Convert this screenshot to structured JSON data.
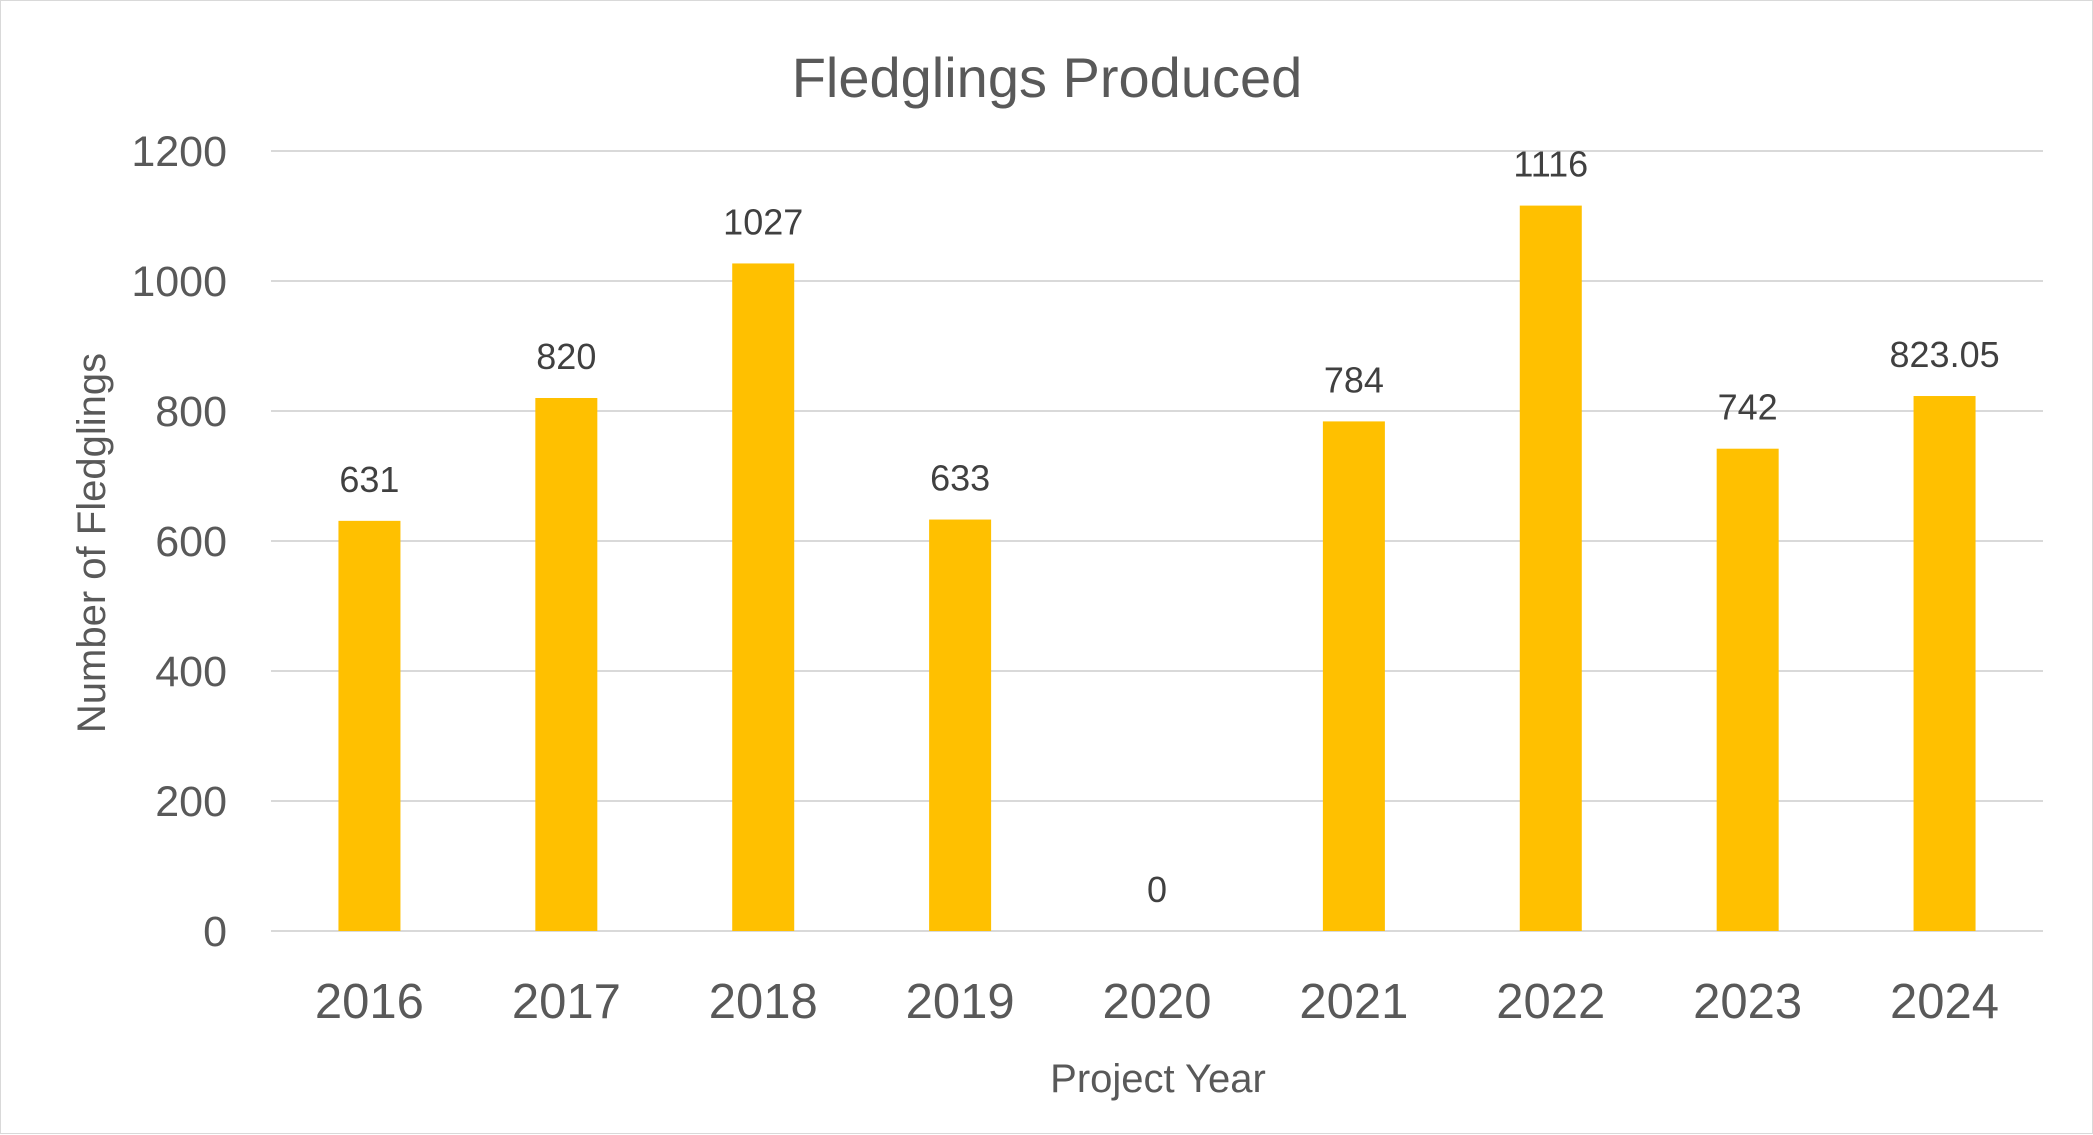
{
  "chart_data": {
    "type": "bar",
    "title": "Fledglings Produced",
    "xlabel": "Project Year",
    "ylabel": "Number of Fledglings",
    "categories": [
      "2016",
      "2017",
      "2018",
      "2019",
      "2020",
      "2021",
      "2022",
      "2023",
      "2024"
    ],
    "values": [
      631,
      820,
      1027,
      633,
      0,
      784,
      1116,
      742,
      823.05
    ],
    "data_labels": [
      "631",
      "820",
      "1027",
      "633",
      "0",
      "784",
      "1116",
      "742",
      "823.05"
    ],
    "y_ticks": [
      0,
      200,
      400,
      600,
      800,
      1000,
      1200
    ],
    "ylim": [
      0,
      1200
    ],
    "grid": true,
    "legend": "none",
    "bar_color": "#ffc000",
    "text_color": "#595959",
    "grid_color": "#d9d9d9"
  }
}
